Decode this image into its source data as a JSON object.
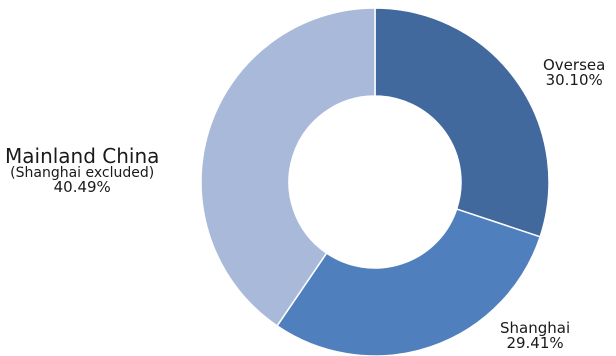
{
  "chart_data": {
    "type": "pie",
    "variant": "donut",
    "title": "",
    "slices": [
      {
        "name": "Oversea",
        "value": 30.1,
        "label": "30.10%",
        "color": "#41699e"
      },
      {
        "name": "Shanghai",
        "value": 29.41,
        "label": "29.41%",
        "color": "#4f80bd"
      },
      {
        "name": "Mainland China",
        "note": "(Shanghai excluded)",
        "value": 40.49,
        "label": "40.49%",
        "color": "#a9b9d9"
      }
    ],
    "legend": "none"
  }
}
